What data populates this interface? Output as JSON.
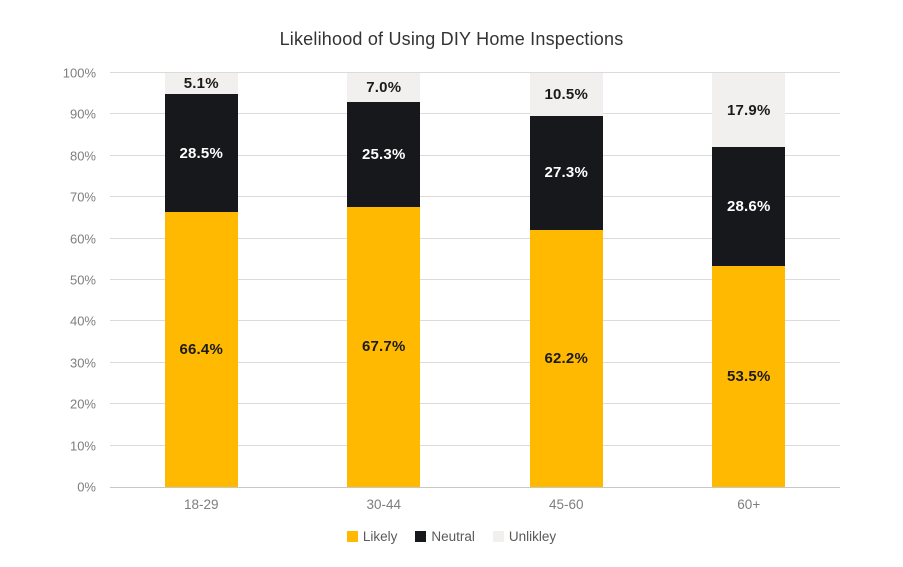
{
  "title": "Likelihood of Using DIY Home Inspections",
  "colors": {
    "background": "#ffffff",
    "gridline": "#dbdbdb",
    "axis_line": "#c7c7c7",
    "axis_text": "#7e7e7e",
    "title_text": "#333333",
    "legend_text": "#5a5a5a"
  },
  "chart_data": {
    "type": "bar",
    "stacked": true,
    "title": "Likelihood of Using DIY Home Inspections",
    "categories": [
      "18-29",
      "30-44",
      "45-60",
      "60+"
    ],
    "series": [
      {
        "name": "Likely",
        "color": "#ffb900",
        "label_color": "#1b1b1b",
        "values": [
          66.4,
          67.7,
          62.2,
          53.5
        ]
      },
      {
        "name": "Neutral",
        "color": "#17181c",
        "label_color": "#ffffff",
        "values": [
          28.5,
          25.3,
          27.3,
          28.6
        ]
      },
      {
        "name": "Unlikley",
        "color": "#f1f0ee",
        "label_color": "#1b1b1b",
        "values": [
          5.1,
          7.0,
          10.5,
          17.9
        ]
      }
    ],
    "data_label_format": "percent_one_decimal",
    "ylim": [
      0,
      100
    ],
    "y_ticks": [
      "0%",
      "10%",
      "20%",
      "30%",
      "40%",
      "50%",
      "60%",
      "70%",
      "80%",
      "90%",
      "100%"
    ],
    "grid": true,
    "legend": [
      "Likely",
      "Neutral",
      "Unlikley"
    ],
    "legend_position": "bottom"
  }
}
